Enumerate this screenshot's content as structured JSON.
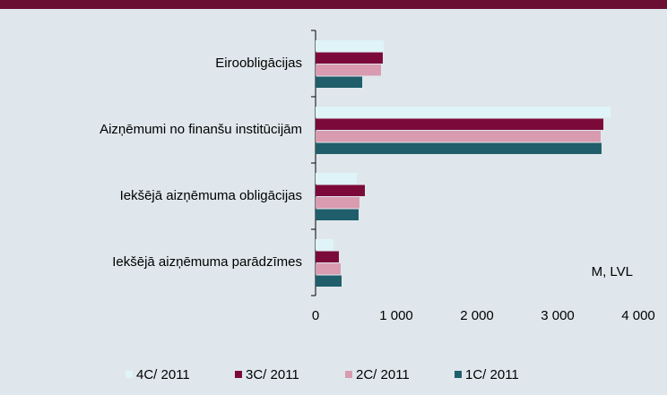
{
  "chart_data": {
    "type": "bar",
    "orientation": "horizontal",
    "categories": [
      "Eiroobligācijas",
      "Aizņēmumi no finanšu institūcijām",
      "Iekšējā aizņēmuma obligācijas",
      "Iekšējā aizņēmuma parādzīmes"
    ],
    "series": [
      {
        "name": "4C/ 2011",
        "color": "#dff4f8",
        "values": [
          845,
          3655,
          511,
          222
        ]
      },
      {
        "name": "3C/ 2011",
        "color": "#7b0a3a",
        "values": [
          833,
          3567,
          611,
          289
        ]
      },
      {
        "name": "2C/ 2011",
        "color": "#d89bb0",
        "values": [
          811,
          3533,
          544,
          311
        ]
      },
      {
        "name": "1C/ 2011",
        "color": "#1f5e6a",
        "values": [
          578,
          3544,
          533,
          322
        ]
      }
    ],
    "xlim": [
      0,
      4000
    ],
    "xticks": [
      0,
      {
        "value": 1000,
        "label": "1 000"
      },
      {
        "value": 2000,
        "label": "2 000"
      },
      {
        "value": 3000,
        "label": "3 000"
      },
      {
        "value": 4000,
        "label": "4 000"
      }
    ],
    "annotation": "M, LVL",
    "legend": "bottom"
  }
}
